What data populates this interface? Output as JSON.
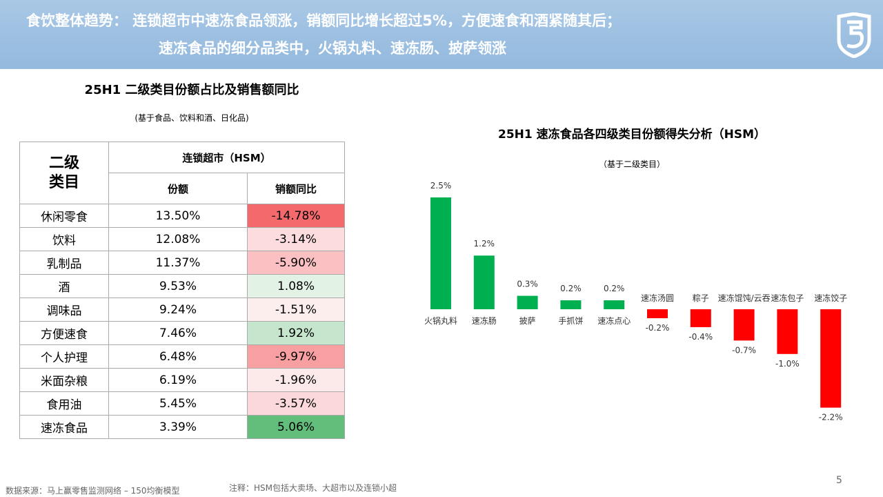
{
  "header": {
    "title_line1": "食饮整体趋势： 连锁超市中速冻食品领涨，销额同比增长超过5%，方便速食和酒紧随其后；",
    "title_line2": "速冻食品的细分品类中，火锅丸料、速冻肠、披萨领涨"
  },
  "table_title": "25H1 二级类目份额占比及销售额同比",
  "table_subtitle": "(基于食品、饮料和酒、日化品)",
  "table": {
    "corner": "二级类目",
    "group_header": "连锁超市（HSM）",
    "columns": [
      "份额",
      "销额同比"
    ],
    "rows": [
      [
        "休闲零食",
        "13.50%",
        "-14.78%"
      ],
      [
        "饮料",
        "12.08%",
        "-3.14%"
      ],
      [
        "乳制品",
        "11.37%",
        "-5.90%"
      ],
      [
        "酒",
        "9.53%",
        "1.08%"
      ],
      [
        "调味品",
        "9.24%",
        "-1.51%"
      ],
      [
        "方便速食",
        "7.46%",
        "1.92%"
      ],
      [
        "个人护理",
        "6.48%",
        "-9.97%"
      ],
      [
        "米面杂粮",
        "6.19%",
        "-1.96%"
      ],
      [
        "食用油",
        "5.45%",
        "-3.57%"
      ],
      [
        "速冻食品",
        "3.39%",
        "5.06%"
      ]
    ],
    "yoy_colors": [
      "#f4696b",
      "#fcdcdd",
      "#fbc0c1",
      "#e2f2e5",
      "#fdeeee",
      "#c5e6cc",
      "#f8a0a1",
      "#fceaea",
      "#fbd9da",
      "#63be7b"
    ]
  },
  "chart_data": {
    "type": "bar",
    "title": "25H1 速冻食品各四级类目份额得失分析（HSM）",
    "subtitle": "（基于二级类目）",
    "categories": [
      "火锅丸料",
      "速冻肠",
      "披萨",
      "手抓饼",
      "速冻点心",
      "速冻汤圆",
      "粽子",
      "速冻馄饨/云吞",
      "速冻包子",
      "速冻饺子"
    ],
    "values": [
      2.5,
      1.2,
      0.3,
      0.2,
      0.2,
      -0.2,
      -0.4,
      -0.7,
      -1.0,
      -2.2
    ],
    "value_labels": [
      "2.5%",
      "1.2%",
      "0.3%",
      "0.2%",
      "0.2%",
      "-0.2%",
      "-0.4%",
      "-0.7%",
      "-1.0%",
      "-2.2%"
    ],
    "positive_color": "#00b050",
    "negative_color": "#ff0000"
  },
  "footer": {
    "source": "数据来源：马上赢零售监测网络 – 150均衡模型",
    "note": "注释：HSM包括大卖场、大超市以及连锁小超",
    "page": "5"
  }
}
